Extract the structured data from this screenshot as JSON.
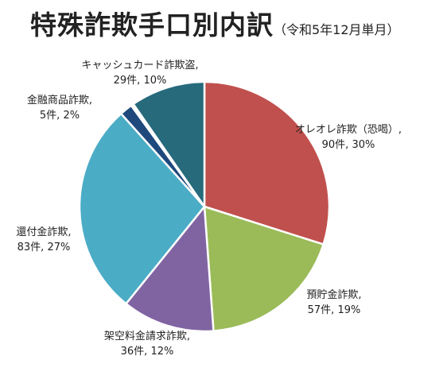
{
  "chart_data": {
    "type": "pie",
    "title": "特殊詐欺手口別内訳",
    "subtitle": "（令和5年12月単月）",
    "unit": "件",
    "slices": [
      {
        "label": "オレオレ詐欺（恐喝）,",
        "value": 90,
        "percent": 30,
        "value_text": "90件, 30%",
        "color": "#C0504D"
      },
      {
        "label": "預貯金詐欺,",
        "value": 57,
        "percent": 19,
        "value_text": "57件, 19%",
        "color": "#9BBB59"
      },
      {
        "label": "架空料金請求詐欺,",
        "value": 36,
        "percent": 12,
        "value_text": "36件, 12%",
        "color": "#8064A2"
      },
      {
        "label": "還付金詐欺,",
        "value": 83,
        "percent": 27,
        "value_text": "83件, 27%",
        "color": "#4BACC6"
      },
      {
        "label": "金融商品詐欺,",
        "value": 5,
        "percent": 2,
        "value_text": "5件, 2%",
        "color": "#1F497D"
      },
      {
        "label": "",
        "value": 1,
        "percent": 0,
        "value_text": "",
        "color": "#FFFFFF"
      },
      {
        "label": "キャッシュカード詐欺盗,",
        "value": 29,
        "percent": 10,
        "value_text": "29件, 10%",
        "color": "#266A7C"
      }
    ]
  }
}
